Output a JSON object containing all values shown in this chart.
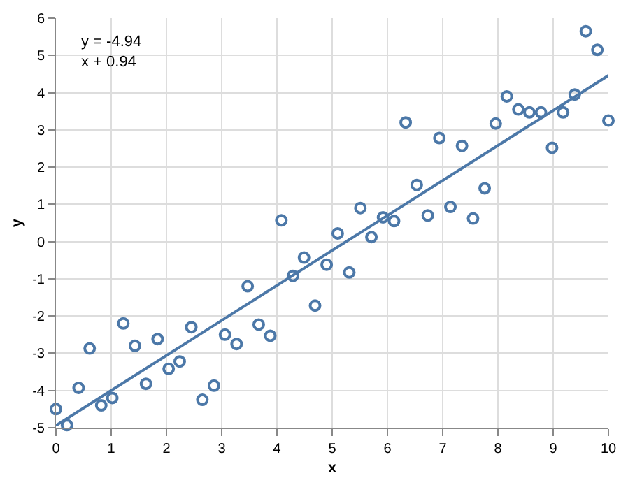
{
  "chart_data": {
    "type": "scatter",
    "xlabel": "x",
    "ylabel": "y",
    "xlim": [
      0,
      10
    ],
    "ylim": [
      -5,
      6
    ],
    "xticks": [
      0,
      1,
      2,
      3,
      4,
      5,
      6,
      7,
      8,
      9,
      10
    ],
    "yticks": [
      -5,
      -4,
      -3,
      -2,
      -1,
      0,
      1,
      2,
      3,
      4,
      5,
      6
    ],
    "grid": true,
    "annotations": [
      "y = -4.94\nx + 0.94"
    ],
    "series": [
      {
        "marker": "circle",
        "color": "#4c78a8",
        "x": [
          0,
          0.2,
          0.41,
          0.61,
          0.82,
          1.02,
          1.22,
          1.43,
          1.63,
          1.84,
          2.04,
          2.24,
          2.45,
          2.65,
          2.86,
          3.06,
          3.27,
          3.47,
          3.67,
          3.88,
          4.08,
          4.29,
          4.49,
          4.69,
          4.9,
          5.1,
          5.31,
          5.51,
          5.71,
          5.92,
          6.12,
          6.33,
          6.53,
          6.73,
          6.94,
          7.14,
          7.35,
          7.55,
          7.76,
          7.96,
          8.16,
          8.37,
          8.57,
          8.78,
          8.98,
          9.18,
          9.39,
          9.59,
          9.8,
          10
        ],
        "values": [
          -4.5,
          -4.93,
          -3.93,
          -2.87,
          -4.4,
          -4.2,
          -2.2,
          -2.8,
          -3.82,
          -2.62,
          -3.42,
          -3.22,
          -2.3,
          -4.25,
          -3.87,
          -2.5,
          -2.75,
          -1.2,
          -2.23,
          -2.53,
          0.57,
          -0.92,
          -0.43,
          -1.72,
          -0.62,
          0.22,
          -0.83,
          0.9,
          0.12,
          0.65,
          0.55,
          3.2,
          1.52,
          0.7,
          2.78,
          0.93,
          2.57,
          0.62,
          1.43,
          3.17,
          3.9,
          3.55,
          3.47,
          3.47,
          2.52,
          3.47,
          3.95,
          5.65,
          5.15,
          3.25
        ]
      },
      {
        "type": "line",
        "marker": "none",
        "line_style": "solid",
        "color": "#4c78a8",
        "x": [
          0,
          10
        ],
        "values": [
          -4.94,
          4.46
        ]
      }
    ]
  }
}
